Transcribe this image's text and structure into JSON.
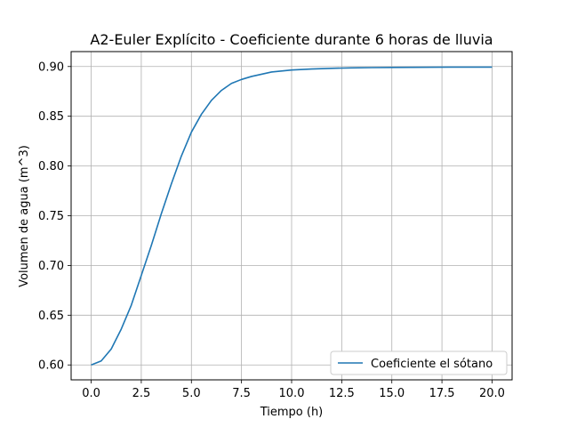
{
  "chart_data": {
    "type": "line",
    "title": "A2-Euler Explícito - Coeficiente durante 6 horas de lluvia",
    "xlabel": "Tiempo (h)",
    "ylabel": "Volumen de agua (m^3)",
    "xlim": [
      -1,
      21
    ],
    "ylim": [
      0.585,
      0.915
    ],
    "x_ticks": [
      "0.0",
      "2.5",
      "5.0",
      "7.5",
      "10.0",
      "12.5",
      "15.0",
      "17.5",
      "20.0"
    ],
    "y_ticks": [
      "0.60",
      "0.65",
      "0.70",
      "0.75",
      "0.80",
      "0.85",
      "0.90"
    ],
    "grid": true,
    "legend_position": "lower-right",
    "colors": {
      "series": "#1f77b4",
      "grid": "#b0b0b0",
      "legend_border": "#cccccc"
    },
    "series": [
      {
        "name": "Coeficiente el sótano",
        "x": [
          0,
          0.5,
          1,
          1.5,
          2,
          2.5,
          3,
          3.5,
          4,
          4.5,
          5,
          5.5,
          6,
          6.5,
          7,
          7.5,
          8,
          9,
          10,
          11,
          12,
          13,
          14,
          15,
          16,
          17,
          18,
          19,
          20
        ],
        "y": [
          0.6,
          0.604,
          0.616,
          0.636,
          0.66,
          0.69,
          0.72,
          0.752,
          0.782,
          0.81,
          0.834,
          0.852,
          0.866,
          0.876,
          0.883,
          0.887,
          0.89,
          0.8945,
          0.8965,
          0.8975,
          0.8982,
          0.8986,
          0.8989,
          0.8991,
          0.8992,
          0.8993,
          0.8994,
          0.8994,
          0.8994
        ]
      }
    ]
  }
}
